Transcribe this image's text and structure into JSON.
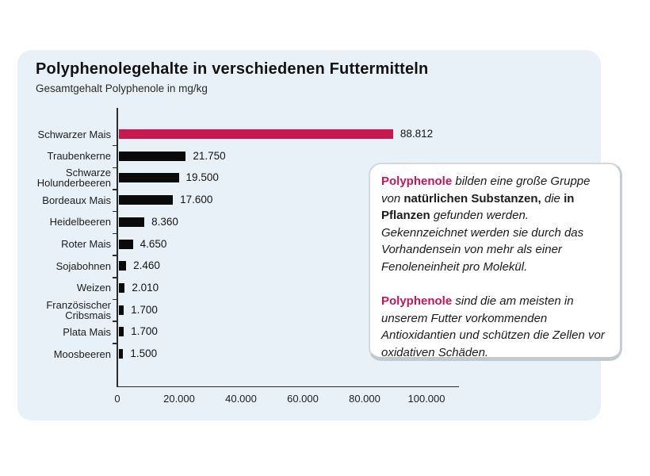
{
  "page": {
    "background": "#ffffff"
  },
  "panel": {
    "background": "#E9F1F8"
  },
  "header": {
    "title": "Polyphenolegehalte in verschiedenen Futtermitteln",
    "subtitle": "Gesamtgehalt Polyphenole in mg/kg"
  },
  "chart_data": {
    "type": "bar",
    "orientation": "horizontal",
    "title": "Polyphenolegehalte in verschiedenen Futtermitteln",
    "ylabel": "",
    "xlabel": "Gesamtgehalt Polyphenole in mg/kg",
    "categories": [
      "Schwarzer Mais",
      "Traubenkerne",
      "Schwarze Holunderbeeren",
      "Bordeaux Mais",
      "Heidelbeeren",
      "Roter Mais",
      "Sojabohnen",
      "Weizen",
      "Französischer Cribsmais",
      "Plata Mais",
      "Moosbeeren"
    ],
    "values": [
      88812,
      21750,
      19500,
      17600,
      8360,
      4650,
      2460,
      2010,
      1700,
      1700,
      1500
    ],
    "value_labels": [
      "88.812",
      "21.750",
      "19.500",
      "17.600",
      "8.360",
      "4.650",
      "2.460",
      "2.010",
      "1.700",
      "1.700",
      "1.500"
    ],
    "xlim": [
      0,
      100000
    ],
    "x_tick_values": [
      0,
      20000,
      40000,
      60000,
      80000,
      100000
    ],
    "x_tick_labels": [
      "0",
      "20.000",
      "40.000",
      "60.000",
      "80.000",
      "100.000"
    ],
    "grid": false,
    "legend": false,
    "bar_color": "#0a0a0a",
    "highlight_index": 0,
    "highlight_color": "#C9184D",
    "axis_color": "#2b2b2b"
  },
  "infobox": {
    "accent_color": "#C81459",
    "paragraphs": [
      {
        "segments": [
          {
            "text": "Polyphenole",
            "style": "brand"
          },
          {
            "text": " bilden eine große Gruppe von ",
            "style": "plain"
          },
          {
            "text": "natürlichen Substanzen,",
            "style": "bold"
          },
          {
            "text": " die ",
            "style": "plain"
          },
          {
            "text": "in Pflanzen",
            "style": "bold"
          },
          {
            "text": " gefunden werden. Gekennzeichnet werden sie durch das Vorhandensein von mehr als einer Fenoleneinheit pro Molekül.",
            "style": "plain"
          }
        ]
      },
      {
        "segments": [
          {
            "text": "Polyphenole",
            "style": "brand"
          },
          {
            "text": " sind die am meisten in unserem Futter vorkommenden Antioxidantien und schützen die Zellen vor oxidativen Schäden.",
            "style": "plain"
          }
        ]
      }
    ]
  }
}
